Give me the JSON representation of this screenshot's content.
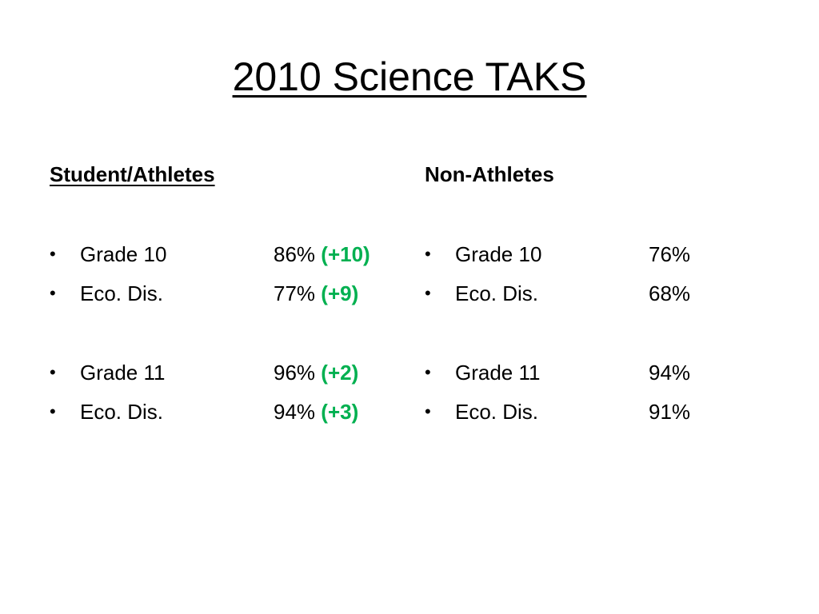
{
  "title": "2010 Science TAKS",
  "bullet_char": "•",
  "left": {
    "heading": "Student/Athletes",
    "group1": [
      {
        "label": "Grade 10",
        "value": "86%",
        "change": "(+10)"
      },
      {
        "label": "Eco. Dis.",
        "value": "77%",
        "change": "(+9)"
      }
    ],
    "group2": [
      {
        "label": "Grade 11",
        "value": "96%",
        "change": "(+2)"
      },
      {
        "label": "Eco. Dis.",
        "value": "94%",
        "change": "(+3)"
      }
    ]
  },
  "right": {
    "heading": "Non-Athletes",
    "group1": [
      {
        "label": "Grade 10",
        "value": "76%"
      },
      {
        "label": "Eco. Dis.",
        "value": "68%"
      }
    ],
    "group2": [
      {
        "label": "Grade 11",
        "value": "94%"
      },
      {
        "label": "Eco. Dis.",
        "value": "91%"
      }
    ]
  },
  "colors": {
    "change": "#00b050",
    "text": "#000000",
    "background": "#ffffff"
  }
}
